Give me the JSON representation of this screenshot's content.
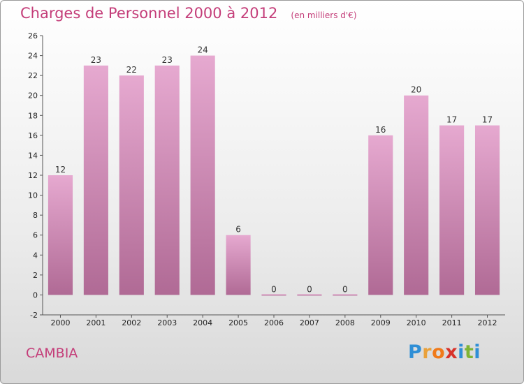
{
  "chart_data": {
    "type": "bar",
    "title": "Charges de Personnel 2000 à 2012",
    "subtitle": "(en milliers d'€)",
    "categories": [
      "2000",
      "2001",
      "2002",
      "2003",
      "2004",
      "2005",
      "2006",
      "2007",
      "2008",
      "2009",
      "2010",
      "2011",
      "2012"
    ],
    "values": [
      12,
      23,
      22,
      23,
      24,
      6,
      0,
      0,
      0,
      16,
      20,
      17,
      17
    ],
    "ylim": [
      -2,
      26
    ],
    "yticks": [
      -2,
      0,
      2,
      4,
      6,
      8,
      10,
      12,
      14,
      16,
      18,
      20,
      22,
      24,
      26
    ],
    "bar_color_top": "#e6a9d0",
    "bar_color_bottom": "#b06a95",
    "grid": false,
    "legend": "none"
  },
  "place_name": "CAMBIA",
  "logo": {
    "text": "Proxiti",
    "letters": [
      {
        "ch": "P",
        "color": "#2f8fd6"
      },
      {
        "ch": "r",
        "color": "#e9a13b"
      },
      {
        "ch": "o",
        "color": "#f07a1a"
      },
      {
        "ch": "x",
        "color": "#d8322a"
      },
      {
        "ch": "i",
        "color": "#2f8fd6"
      },
      {
        "ch": "t",
        "color": "#7fb435"
      },
      {
        "ch": "i",
        "color": "#2f8fd6"
      }
    ]
  }
}
